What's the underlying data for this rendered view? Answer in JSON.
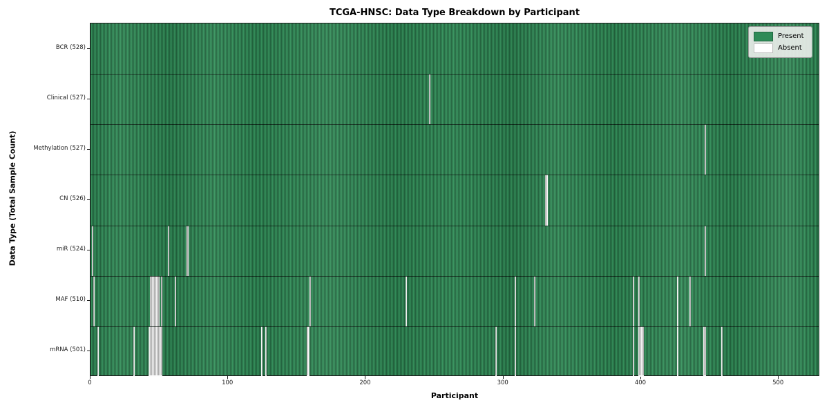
{
  "title": "TCGA-HNSC: Data Type Breakdown by Participant",
  "x_axis": {
    "label": "Participant",
    "ticks": [
      0,
      100,
      200,
      300,
      400,
      500
    ]
  },
  "y_axis": {
    "label": "Data Type (Total Sample Count)"
  },
  "legend": {
    "items": [
      {
        "label": "Present",
        "color": "#2e8b57"
      },
      {
        "label": "Absent",
        "color": "#ffffff"
      }
    ]
  },
  "colors": {
    "present": "#2e8b57",
    "absent": "#ffffff",
    "plot_border": "#1a1a1a",
    "legend_background": "#e9ede9"
  },
  "chart_data": {
    "type": "heatmap",
    "title": "TCGA-HNSC: Data Type Breakdown by Participant",
    "xlabel": "Participant",
    "ylabel": "Data Type (Total Sample Count)",
    "n_participants": 528,
    "x_range": [
      0,
      528
    ],
    "x_ticks": [
      0,
      100,
      200,
      300,
      400,
      500
    ],
    "legend_position": "upper right",
    "cell_states": [
      "Present",
      "Absent"
    ],
    "rows": [
      {
        "label": "BCR (528)",
        "data_type": "BCR",
        "present_count": 528,
        "absent_count": 0,
        "absent_participants": []
      },
      {
        "label": "Clinical (527)",
        "data_type": "Clinical",
        "present_count": 527,
        "absent_count": 1,
        "absent_participants": [
          246
        ]
      },
      {
        "label": "Methylation (527)",
        "data_type": "Methylation",
        "present_count": 527,
        "absent_count": 1,
        "absent_participants": [
          446
        ]
      },
      {
        "label": "CN (526)",
        "data_type": "CN",
        "present_count": 526,
        "absent_count": 2,
        "absent_participants": [
          330,
          331
        ]
      },
      {
        "label": "miR (524)",
        "data_type": "miR",
        "present_count": 524,
        "absent_count": 4,
        "absent_participants": [
          1,
          56,
          70,
          446
        ]
      },
      {
        "label": "MAF (510)",
        "data_type": "MAF",
        "present_count": 510,
        "absent_count": 18,
        "absent_participants": [
          2,
          43,
          44,
          45,
          46,
          47,
          48,
          49,
          51,
          61,
          159,
          229,
          308,
          322,
          394,
          398,
          426,
          435
        ]
      },
      {
        "label": "mRNA (501)",
        "data_type": "mRNA",
        "present_count": 501,
        "absent_count": 27,
        "absent_participants": [
          5,
          31,
          42,
          43,
          44,
          45,
          46,
          47,
          48,
          49,
          50,
          51,
          124,
          127,
          157,
          158,
          294,
          308,
          394,
          398,
          399,
          400,
          401,
          426,
          445,
          446,
          458
        ]
      }
    ]
  }
}
